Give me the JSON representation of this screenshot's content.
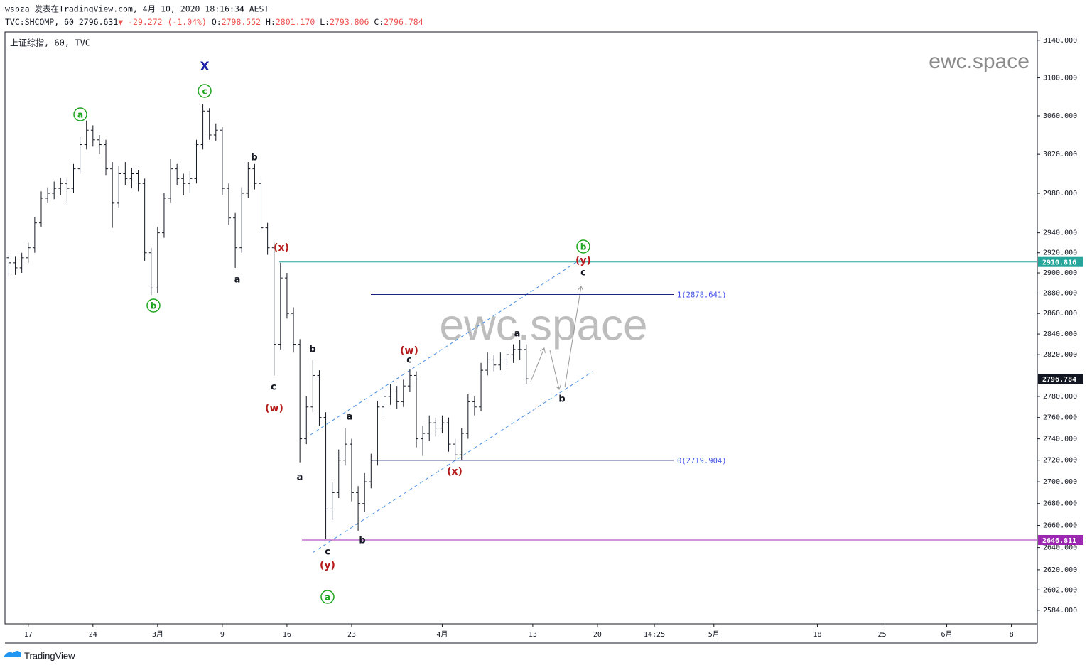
{
  "header": {
    "author_line": "wsbza 发表在TradingView.com, 4月 10, 2020 18:16:34 AEST",
    "symbol": "TVC:SHCOMP, 60",
    "price": "2796.631",
    "change": "▼ -29.272 (-1.04%)",
    "o_label": "O:",
    "o": "2798.552",
    "h_label": "H:",
    "h": "2801.170",
    "l_label": "L:",
    "l": "2793.806",
    "c_label": "C:",
    "c": "2796.784",
    "legend": "上证综指, 60, TVC"
  },
  "watermark": "ewc.space",
  "footer": "TradingView",
  "chart_data": {
    "type": "ohlc",
    "log": true,
    "color": "#131722",
    "xlim": [
      -1.8,
      78
    ],
    "ylim": [
      2572,
      3149
    ],
    "xticks": [
      {
        "value": 0,
        "label": "17"
      },
      {
        "value": 5,
        "label": "24"
      },
      {
        "value": 10,
        "label": "3月"
      },
      {
        "value": 15,
        "label": "9"
      },
      {
        "value": 20,
        "label": "16"
      },
      {
        "value": 25,
        "label": "23"
      },
      {
        "value": 32,
        "label": "4月"
      },
      {
        "value": 39,
        "label": "13"
      },
      {
        "value": 44,
        "label": "20"
      },
      {
        "value": 48.4,
        "label": "14:25"
      },
      {
        "value": 53,
        "label": "5月"
      },
      {
        "value": 61,
        "label": "18"
      },
      {
        "value": 66,
        "label": "25"
      },
      {
        "value": 71,
        "label": "6月"
      },
      {
        "value": 76,
        "label": "8"
      }
    ],
    "yticks": [
      {
        "value": 3140,
        "label": "3140.000"
      },
      {
        "value": 3100,
        "label": "3100.000"
      },
      {
        "value": 3060,
        "label": "3060.000"
      },
      {
        "value": 3020,
        "label": "3020.000"
      },
      {
        "value": 2980,
        "label": "2980.000"
      },
      {
        "value": 2940,
        "label": "2940.000"
      },
      {
        "value": 2920,
        "label": "2920.000"
      },
      {
        "value": 2900,
        "label": "2900.000"
      },
      {
        "value": 2880,
        "label": "2880.000"
      },
      {
        "value": 2860,
        "label": "2860.000"
      },
      {
        "value": 2840,
        "label": "2840.000"
      },
      {
        "value": 2820,
        "label": "2820.000"
      },
      {
        "value": 2780,
        "label": "2780.000"
      },
      {
        "value": 2760,
        "label": "2760.000"
      },
      {
        "value": 2740,
        "label": "2740.000"
      },
      {
        "value": 2720,
        "label": "2720.000"
      },
      {
        "value": 2700,
        "label": "2700.000"
      },
      {
        "value": 2680,
        "label": "2680.000"
      },
      {
        "value": 2660,
        "label": "2660.000"
      },
      {
        "value": 2640,
        "label": "2640.000"
      },
      {
        "value": 2620,
        "label": "2620.000"
      },
      {
        "value": 2602,
        "label": "2602.000"
      },
      {
        "value": 2584,
        "label": "2584.000"
      }
    ],
    "x": [
      -1.5,
      -1,
      -0.5,
      0,
      0.5,
      1,
      1.5,
      2,
      2.5,
      3,
      3.5,
      4,
      4.5,
      5,
      5.5,
      6,
      6.5,
      7,
      7.5,
      8,
      8.5,
      9,
      9.5,
      10,
      10.5,
      11,
      11.5,
      12,
      12.5,
      13,
      13.5,
      14,
      14.5,
      15,
      15.5,
      16,
      16.5,
      17,
      17.5,
      18,
      18.5,
      19,
      19.5,
      20,
      20.5,
      21,
      21.5,
      22,
      22.5,
      23,
      23.5,
      24,
      24.5,
      25,
      25.5,
      26,
      26.5,
      27,
      27.5,
      28,
      28.5,
      29,
      29.5,
      30,
      30.5,
      31,
      31.5,
      32,
      32.5,
      33,
      33.5,
      34,
      34.5,
      35,
      35.5,
      36,
      36.5,
      37,
      37.5,
      38,
      38.5
    ],
    "open": [
      2915,
      2910,
      2905,
      2915,
      2925,
      2950,
      2975,
      2980,
      2985,
      2990,
      2985,
      3005,
      3030,
      3045,
      3035,
      3030,
      3005,
      2970,
      3000,
      2995,
      3000,
      2990,
      2920,
      2885,
      2940,
      2975,
      3005,
      2995,
      2990,
      2995,
      3030,
      3065,
      3040,
      3045,
      2985,
      2955,
      2925,
      2980,
      3005,
      2990,
      2945,
      2925,
      2830,
      2895,
      2860,
      2830,
      2740,
      2770,
      2800,
      2760,
      2675,
      2690,
      2720,
      2735,
      2690,
      2680,
      2700,
      2720,
      2770,
      2780,
      2785,
      2775,
      2790,
      2800,
      2740,
      2745,
      2755,
      2750,
      2755,
      2735,
      2725,
      2745,
      2775,
      2770,
      2805,
      2815,
      2810,
      2815,
      2820,
      2825,
      2825
    ],
    "high": [
      2921,
      2916,
      2920,
      2930,
      2956,
      2982,
      2986,
      2992,
      2996,
      2995,
      3010,
      3038,
      3055,
      3050,
      3040,
      3035,
      3012,
      3008,
      3012,
      3006,
      3004,
      2995,
      2925,
      2946,
      2980,
      3015,
      3010,
      3000,
      3003,
      3035,
      3072,
      3068,
      3052,
      3048,
      2990,
      2960,
      2986,
      3012,
      3010,
      2995,
      2950,
      2930,
      2910,
      2900,
      2866,
      2835,
      2780,
      2815,
      2805,
      2765,
      2700,
      2730,
      2750,
      2740,
      2696,
      2708,
      2726,
      2776,
      2786,
      2792,
      2790,
      2796,
      2806,
      2804,
      2752,
      2762,
      2760,
      2762,
      2760,
      2740,
      2750,
      2782,
      2780,
      2812,
      2822,
      2820,
      2822,
      2826,
      2830,
      2834,
      2830
    ],
    "low": [
      2896,
      2898,
      2900,
      2910,
      2920,
      2946,
      2970,
      2974,
      2978,
      2970,
      2980,
      3000,
      3025,
      3028,
      3020,
      2998,
      2945,
      2965,
      2988,
      2985,
      2982,
      2912,
      2878,
      2880,
      2935,
      2970,
      2988,
      2978,
      2980,
      2990,
      3025,
      3035,
      3034,
      2978,
      2948,
      2905,
      2920,
      2975,
      2984,
      2940,
      2918,
      2800,
      2825,
      2855,
      2822,
      2718,
      2735,
      2765,
      2752,
      2648,
      2665,
      2685,
      2715,
      2682,
      2655,
      2672,
      2694,
      2715,
      2762,
      2772,
      2768,
      2770,
      2784,
      2732,
      2724,
      2738,
      2742,
      2745,
      2728,
      2720,
      2720,
      2740,
      2762,
      2766,
      2800,
      2804,
      2805,
      2808,
      2812,
      2815,
      2792
    ],
    "close": [
      2910,
      2905,
      2915,
      2925,
      2950,
      2975,
      2980,
      2985,
      2990,
      2985,
      3005,
      3030,
      3045,
      3035,
      3030,
      3005,
      2970,
      3000,
      2995,
      3000,
      2990,
      2920,
      2885,
      2940,
      2975,
      3005,
      2995,
      2990,
      2995,
      3030,
      3065,
      3040,
      3045,
      2985,
      2955,
      2925,
      2980,
      3005,
      2990,
      2945,
      2925,
      2830,
      2895,
      2860,
      2830,
      2740,
      2770,
      2800,
      2760,
      2675,
      2690,
      2720,
      2735,
      2690,
      2680,
      2700,
      2720,
      2770,
      2780,
      2785,
      2775,
      2790,
      2800,
      2740,
      2745,
      2755,
      2750,
      2755,
      2735,
      2725,
      2745,
      2775,
      2770,
      2805,
      2815,
      2810,
      2815,
      2820,
      2825,
      2825,
      2796.784
    ],
    "levels": [
      {
        "value": 2910.816,
        "label": "2910.816",
        "color": "#26a69a"
      },
      {
        "value": 2646.811,
        "label": "2646.811",
        "color": "#9c27b0"
      },
      {
        "value": 2796.784,
        "label": "2796.784",
        "color": "#131722"
      }
    ],
    "fib": [
      {
        "value": 2878.641,
        "label": "1(2878.641)",
        "color": "#1a237e"
      },
      {
        "value": 2719.904,
        "label": "0(2719.904)",
        "color": "#1a237e"
      }
    ],
    "annotations": [
      {
        "text": "a",
        "style": "circle"
      },
      {
        "text": "b",
        "style": "circle"
      },
      {
        "text": "c",
        "style": "circle"
      },
      {
        "text": "X",
        "style": "blue"
      },
      {
        "text": "b",
        "style": "plain"
      },
      {
        "text": "a",
        "style": "plain"
      },
      {
        "text": "(x)",
        "style": "red"
      },
      {
        "text": "c",
        "style": "plain"
      },
      {
        "text": "(w)",
        "style": "red"
      },
      {
        "text": "b",
        "style": "plain"
      },
      {
        "text": "a",
        "style": "plain"
      },
      {
        "text": "a",
        "style": "plain"
      },
      {
        "text": "c",
        "style": "plain"
      },
      {
        "text": "(y)",
        "style": "red"
      },
      {
        "text": "a",
        "style": "circle"
      },
      {
        "text": "b",
        "style": "plain"
      },
      {
        "text": "(w)",
        "style": "red"
      },
      {
        "text": "c",
        "style": "plain"
      },
      {
        "text": "(x)",
        "style": "red"
      },
      {
        "text": "a",
        "style": "plain"
      },
      {
        "text": "b",
        "style": "plain"
      },
      {
        "text": "b",
        "style": "circle"
      },
      {
        "text": "(y)",
        "style": "red"
      },
      {
        "text": "c",
        "style": "plain"
      }
    ]
  }
}
